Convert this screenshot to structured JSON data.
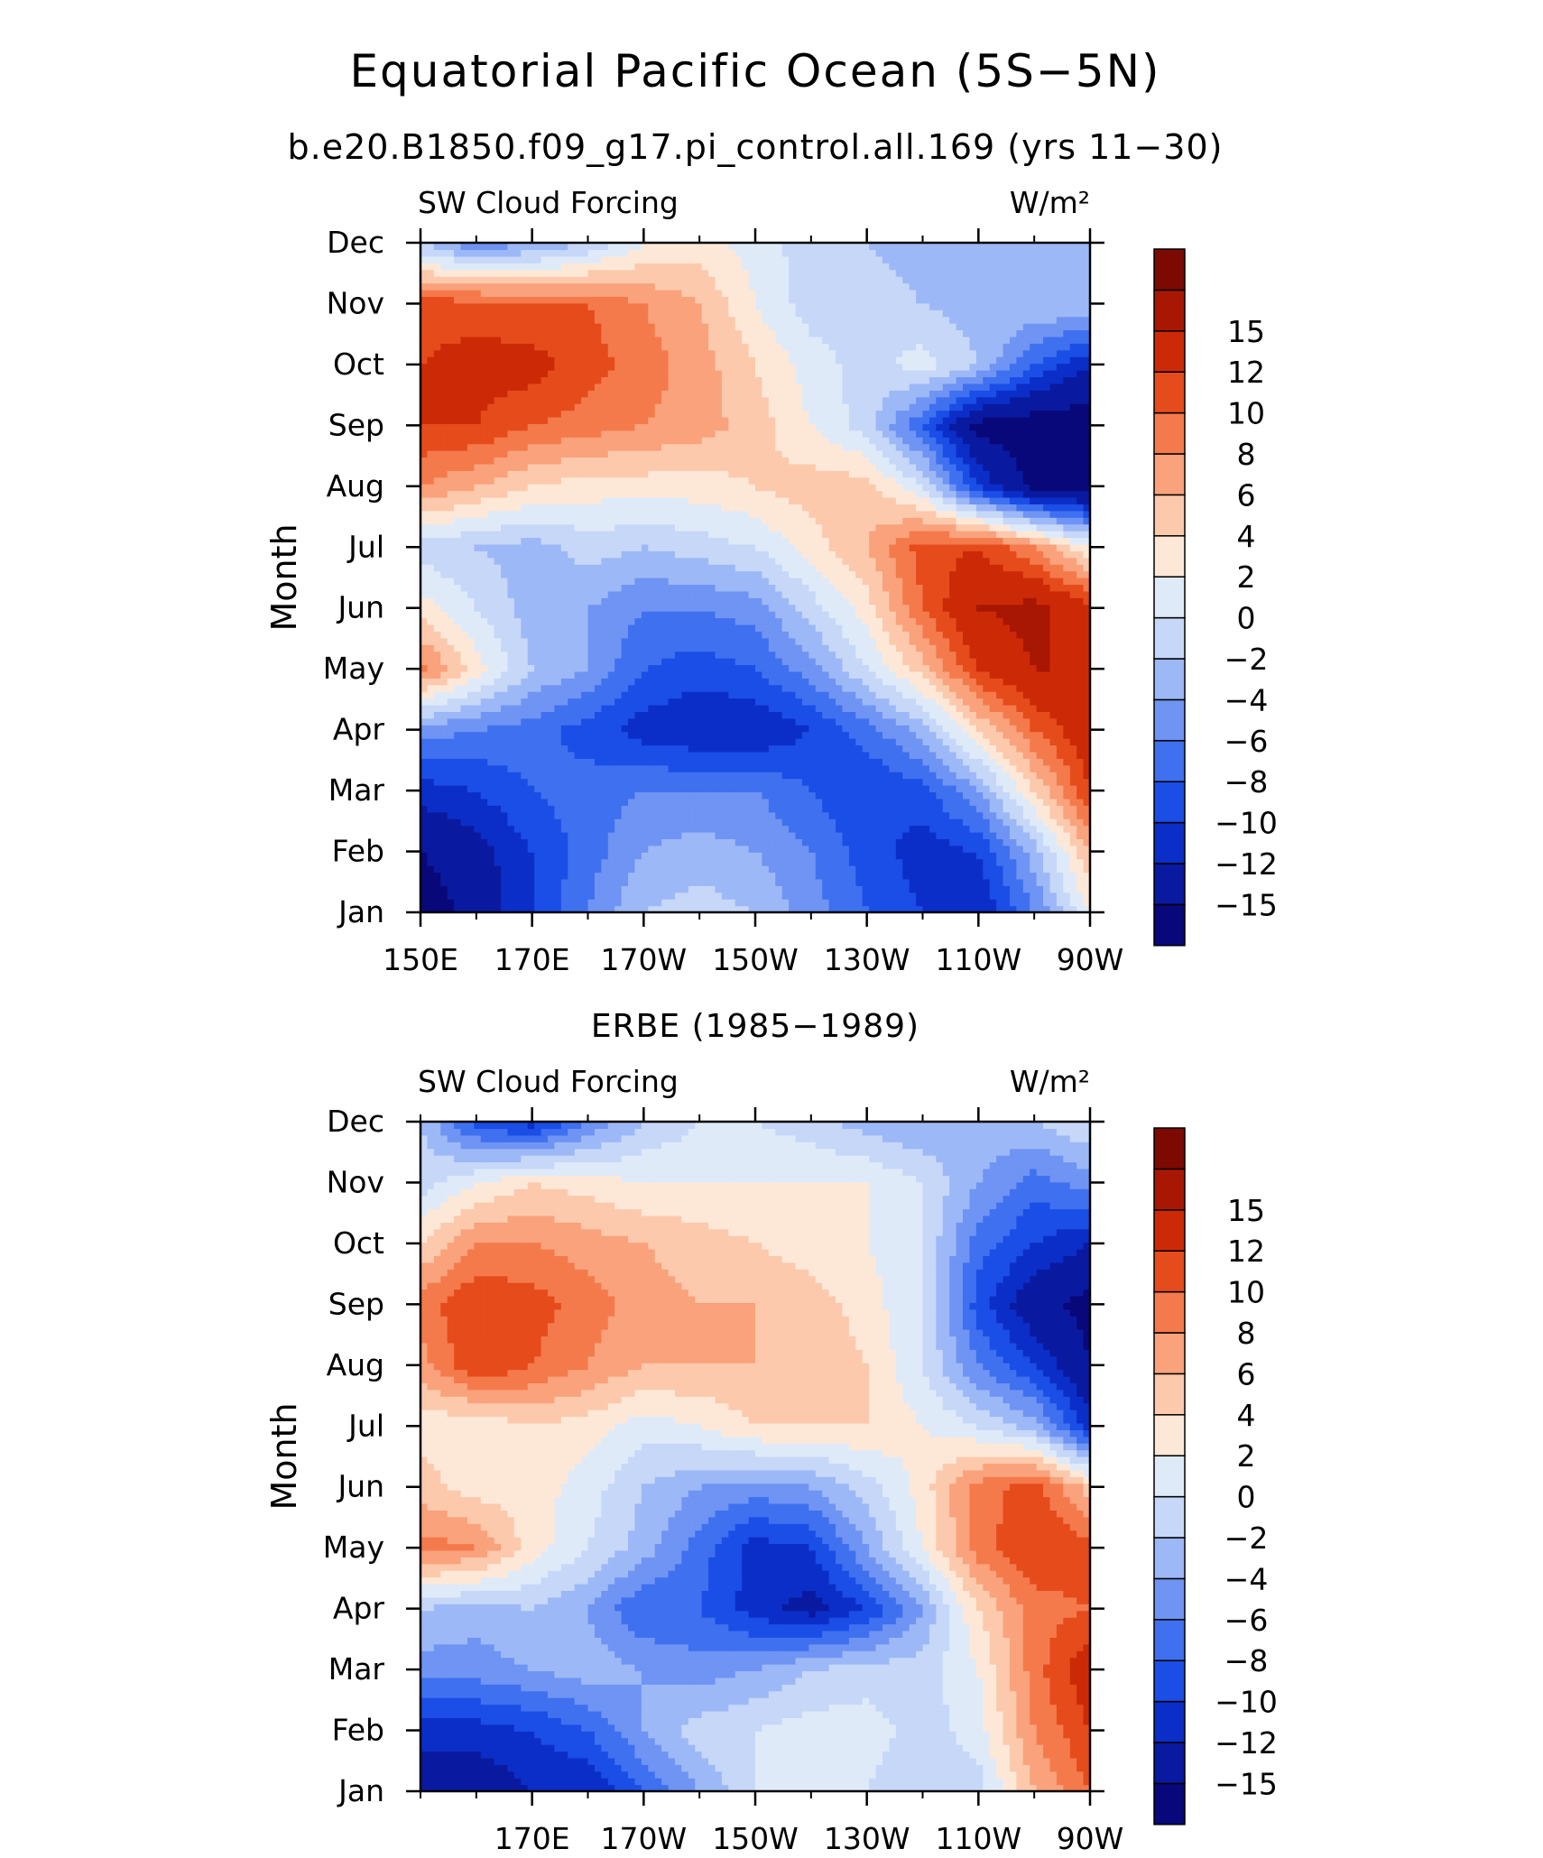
{
  "figure": {
    "title": "Equatorial Pacific Ocean (5S−5N)",
    "colorbar_labels": [
      "−15",
      "−12",
      "−10",
      "−8",
      "−6",
      "−4",
      "−2",
      "0",
      "2",
      "4",
      "6",
      "8",
      "10",
      "12",
      "15"
    ],
    "palette": [
      "#08087a",
      "#0a1aa0",
      "#0c2ec8",
      "#1a4ee6",
      "#3f70ef",
      "#6f94f3",
      "#9db8f6",
      "#c6d7f8",
      "#dfeaf9",
      "#fde8d8",
      "#fcc9ac",
      "#f9a27c",
      "#f47a4c",
      "#e64b1c",
      "#cc2a06",
      "#a81703",
      "#7d0a02"
    ]
  },
  "chart_data": [
    {
      "type": "heatmap",
      "subtitle": "b.e20.B1850.f09_g17.pi_control.all.169 (yrs 11−30)",
      "left_label": "SW Cloud Forcing",
      "right_label": "W/m²",
      "ylabel": "Month",
      "x_tick_labels": [
        "150E",
        "170E",
        "170W",
        "150W",
        "130W",
        "110W",
        "90W"
      ],
      "y_tick_labels": [
        "Jan",
        "Feb",
        "Mar",
        "Apr",
        "May",
        "Jun",
        "Jul",
        "Aug",
        "Sep",
        "Oct",
        "Nov",
        "Dec"
      ],
      "xlim": [
        150,
        270
      ],
      "levels": [
        -15,
        -12,
        -10,
        -8,
        -6,
        -4,
        -2,
        0,
        2,
        4,
        6,
        8,
        10,
        12,
        15
      ],
      "x": [
        150,
        160,
        170,
        180,
        190,
        200,
        210,
        220,
        230,
        240,
        250,
        260,
        270
      ],
      "z": [
        [
          -17,
          -14,
          -10,
          -6,
          -2,
          -1,
          -2,
          -5,
          -8,
          -10,
          -12,
          -6,
          2
        ],
        [
          -15,
          -13,
          -10,
          -7,
          -4,
          -3,
          -4,
          -6,
          -9,
          -11,
          -10,
          -3,
          6
        ],
        [
          -11,
          -10,
          -8,
          -7,
          -6,
          -6,
          -6,
          -8,
          -10,
          -9,
          -4,
          4,
          12
        ],
        [
          -5,
          -6,
          -7,
          -9,
          -11,
          -12,
          -12,
          -10,
          -7,
          -3,
          4,
          10,
          14
        ],
        [
          9,
          3,
          -2,
          -4,
          -8,
          -9,
          -8,
          -5,
          0,
          5,
          12,
          15,
          15
        ],
        [
          3,
          0,
          -3,
          -4,
          -6,
          -6,
          -5,
          -1,
          3,
          10,
          15,
          16,
          13
        ],
        [
          -1,
          -2,
          -3,
          -1,
          -2,
          -1,
          0,
          3,
          6,
          11,
          12,
          8,
          2
        ],
        [
          8,
          6,
          4,
          3,
          3,
          3,
          4,
          5,
          5,
          0,
          -10,
          -16,
          -17
        ],
        [
          12,
          12,
          10,
          9,
          8,
          7,
          5,
          2,
          -1,
          -8,
          -16,
          -17,
          -17
        ],
        [
          12,
          13,
          13,
          11,
          9,
          7,
          4,
          1,
          -1,
          1,
          -2,
          -8,
          -12
        ],
        [
          11,
          11,
          10,
          10,
          8,
          6,
          2,
          -1,
          -1,
          -2,
          -3,
          -2,
          -2
        ],
        [
          -2,
          -6,
          -4,
          -2,
          2,
          3,
          1,
          -1,
          -2,
          -3,
          -4,
          -4,
          -3
        ]
      ]
    },
    {
      "type": "heatmap",
      "subtitle": "ERBE (1985−1989)",
      "left_label": "SW Cloud Forcing",
      "right_label": "W/m²",
      "ylabel": "Month",
      "x_tick_labels": [
        "170E",
        "170W",
        "150W",
        "130W",
        "110W",
        "90W"
      ],
      "y_tick_labels": [
        "Jan",
        "Feb",
        "Mar",
        "Apr",
        "May",
        "Jun",
        "Jul",
        "Aug",
        "Sep",
        "Oct",
        "Nov",
        "Dec"
      ],
      "xlim": [
        150,
        270
      ],
      "levels": [
        -15,
        -12,
        -10,
        -8,
        -6,
        -4,
        -2,
        0,
        2,
        4,
        6,
        8,
        10,
        12,
        15
      ],
      "x": [
        150,
        160,
        170,
        180,
        190,
        200,
        210,
        220,
        230,
        240,
        250,
        260,
        270
      ],
      "z": [
        [
          -14,
          -14,
          -12,
          -12,
          -8,
          -4,
          0,
          1,
          0,
          -2,
          -1,
          6,
          10
        ],
        [
          -11,
          -11,
          -10,
          -8,
          -4,
          -1,
          0,
          1,
          1,
          -1,
          1,
          8,
          12
        ],
        [
          -5,
          -5,
          -4,
          -3,
          -4,
          -5,
          -4,
          -2,
          -1,
          -1,
          2,
          9,
          14
        ],
        [
          -2,
          -3,
          -2,
          -4,
          -8,
          -8,
          -11,
          -13,
          -10,
          -4,
          4,
          9,
          10
        ],
        [
          9,
          8,
          3,
          0,
          -3,
          -7,
          -11,
          -10,
          -4,
          2,
          9,
          12,
          11
        ],
        [
          5,
          3,
          3,
          1,
          -2,
          -4,
          -5,
          -4,
          -1,
          3,
          9,
          11,
          5
        ],
        [
          3,
          2,
          4,
          3,
          1,
          2,
          4,
          4,
          4,
          2,
          0,
          -3,
          -11
        ],
        [
          7,
          12,
          10,
          8,
          6,
          6,
          6,
          6,
          4,
          0,
          -6,
          -10,
          -15
        ],
        [
          9,
          12,
          11,
          9,
          7,
          6,
          6,
          5,
          3,
          0,
          -9,
          -14,
          -16
        ],
        [
          4,
          8,
          8,
          7,
          6,
          5,
          4,
          3,
          2,
          0,
          -7,
          -10,
          -12
        ],
        [
          -1,
          2,
          4,
          3,
          2,
          2,
          2,
          2,
          2,
          0,
          -4,
          -7,
          -5
        ],
        [
          -2,
          -9,
          -11,
          -6,
          -2,
          0,
          0,
          -1,
          -3,
          -4,
          -3,
          -2,
          0
        ]
      ]
    }
  ]
}
